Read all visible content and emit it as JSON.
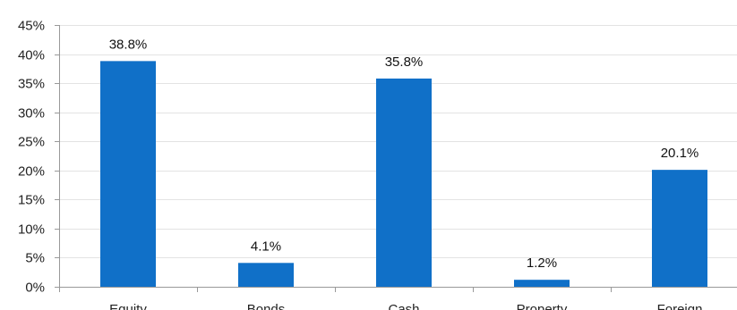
{
  "chart_data": {
    "type": "bar",
    "categories": [
      "Equity",
      "Bonds",
      "Cash",
      "Property",
      "Foreign"
    ],
    "values": [
      38.8,
      4.1,
      35.8,
      1.2,
      20.1
    ],
    "data_labels": [
      "38.8%",
      "4.1%",
      "35.8%",
      "1.2%",
      "20.1%"
    ],
    "ylim": [
      0,
      45
    ],
    "y_ticks": [
      0,
      5,
      10,
      15,
      20,
      25,
      30,
      35,
      40,
      45
    ],
    "y_tick_labels": [
      "0%",
      "5%",
      "10%",
      "15%",
      "20%",
      "25%",
      "30%",
      "35%",
      "40%",
      "45%"
    ],
    "grid": true,
    "legend": "none",
    "title": "",
    "xlabel": "",
    "ylabel": "",
    "colors": {
      "bar": "#1070C8",
      "grid": "#E3E3E3",
      "axis": "#999999"
    }
  }
}
